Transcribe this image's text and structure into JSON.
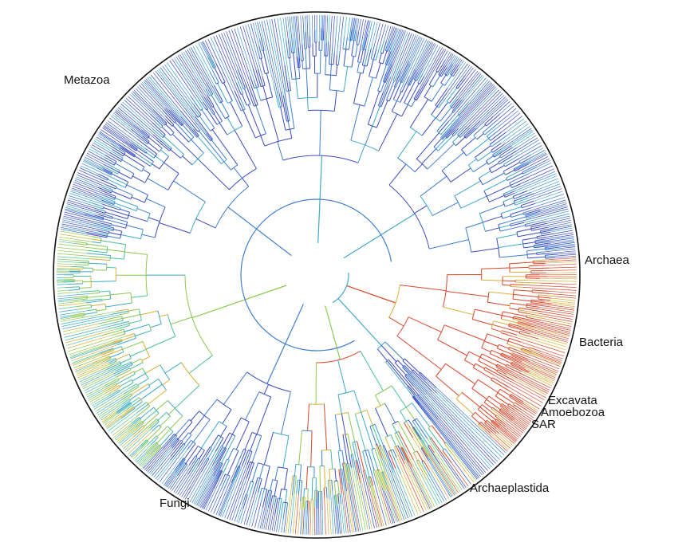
{
  "figure": {
    "kind": "circular phylogenetic tree of life",
    "clades": [
      {
        "id": "archaea",
        "label": "Archaea",
        "color": "#d9472b"
      },
      {
        "id": "bacteria",
        "label": "Bacteria",
        "color": "#d9472b"
      },
      {
        "id": "excavata",
        "label": "Excavata",
        "color": "#3c4fb4"
      },
      {
        "id": "amoebozoa",
        "label": "Amoebozoa",
        "color": "#3c4fb4"
      },
      {
        "id": "sar",
        "label": "SAR",
        "color": "#2f7fc7"
      },
      {
        "id": "archaeplastida",
        "label": "Archaeplastida",
        "color": "#46b1a0"
      },
      {
        "id": "fungi",
        "label": "Fungi",
        "color": "#5a9fd8"
      },
      {
        "id": "metazoa",
        "label": "Metazoa",
        "color": "#4a63c8"
      }
    ],
    "palette": [
      "#3b4cc0",
      "#3f7fd0",
      "#3fa9c9",
      "#4cc09a",
      "#8cc84f",
      "#d6b13c",
      "#d9472b"
    ]
  }
}
